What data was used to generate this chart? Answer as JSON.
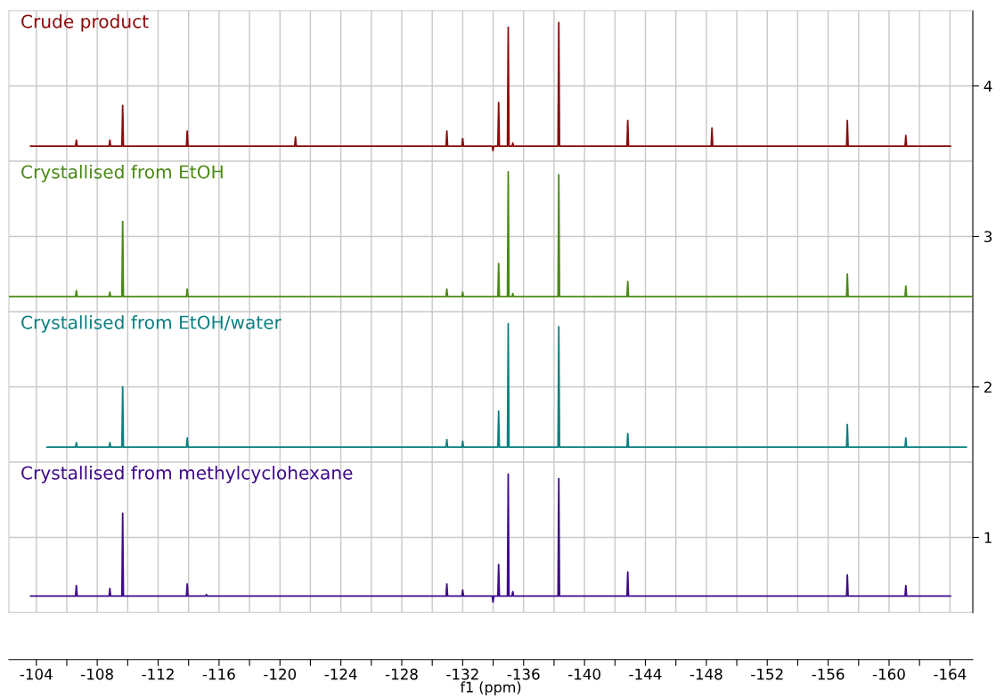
{
  "chart_data": {
    "type": "line",
    "xlabel": "f1 (ppm)",
    "xlim": [
      -102.2,
      -165.5
    ],
    "ylim": [
      0.5,
      4.5
    ],
    "xticks": [
      -104,
      {
        "value": -106,
        "label": null
      },
      -108,
      {
        "value": -110,
        "label": null
      },
      -112,
      {
        "value": -114,
        "label": null
      },
      -116,
      {
        "value": -118,
        "label": null
      },
      -120,
      {
        "value": -122,
        "label": null
      },
      -124,
      {
        "value": -126,
        "label": null
      },
      -128,
      {
        "value": -130,
        "label": null
      },
      -132,
      {
        "value": -134,
        "label": null
      },
      -136,
      {
        "value": -138,
        "label": null
      },
      -140,
      {
        "value": -142,
        "label": null
      },
      -144,
      {
        "value": -146,
        "label": null
      },
      -148,
      {
        "value": -150,
        "label": null
      },
      -152,
      {
        "value": -154,
        "label": null
      },
      -156,
      {
        "value": -158,
        "label": null
      },
      -160,
      {
        "value": -162,
        "label": null
      },
      -164
    ],
    "yticks": [
      1,
      2,
      3,
      4
    ],
    "grid": true,
    "marker": "none",
    "line_style": "solid",
    "ref_lines": [
      {
        "axis": "y",
        "value": 3.5,
        "color": "#c8c8c8"
      },
      {
        "axis": "y",
        "value": 2.5,
        "color": "#c8c8c8"
      },
      {
        "axis": "y",
        "value": 1.5,
        "color": "#c8c8c8"
      }
    ],
    "series": [
      {
        "name": "Crude product",
        "color": "#8b0a0a",
        "x": [
          -103.63,
          -106.58,
          -106.63,
          -106.68,
          -108.78,
          -108.83,
          -108.88,
          -109.62,
          -109.67,
          -109.72,
          -113.86,
          -113.91,
          -113.96,
          -120.97,
          -121.02,
          -121.07,
          -130.91,
          -130.96,
          -131.01,
          -131.95,
          -132.0,
          -132.05,
          -133.94,
          -133.99,
          -134.04,
          -134.31,
          -134.36,
          -134.41,
          -134.94,
          -134.99,
          -135.04,
          -135.24,
          -135.29,
          -135.34,
          -138.26,
          -138.31,
          -138.36,
          -142.79,
          -142.84,
          -142.89,
          -148.32,
          -148.37,
          -148.42,
          -157.21,
          -157.26,
          -157.31,
          -161.05,
          -161.1,
          -161.15,
          -164.03
        ],
        "values": [
          3.6,
          3.6,
          3.64,
          3.6,
          3.6,
          3.64,
          3.6,
          3.6,
          3.87,
          3.6,
          3.6,
          3.7,
          3.6,
          3.6,
          3.66,
          3.6,
          3.6,
          3.7,
          3.6,
          3.6,
          3.65,
          3.6,
          3.6,
          3.57,
          3.6,
          3.6,
          3.89,
          3.6,
          3.6,
          4.39,
          3.6,
          3.6,
          3.62,
          3.6,
          3.6,
          4.42,
          3.6,
          3.6,
          3.77,
          3.6,
          3.6,
          3.72,
          3.6,
          3.6,
          3.77,
          3.6,
          3.6,
          3.67,
          3.6,
          3.6
        ]
      },
      {
        "name": "Crystallised from EtOH",
        "color": "#4a8a14",
        "x": [
          -102.2,
          -106.58,
          -106.63,
          -106.68,
          -108.78,
          -108.83,
          -108.88,
          -109.62,
          -109.67,
          -109.72,
          -113.86,
          -113.91,
          -113.96,
          -130.91,
          -130.96,
          -131.01,
          -131.95,
          -132.0,
          -132.05,
          -134.31,
          -134.36,
          -134.41,
          -134.94,
          -134.99,
          -135.04,
          -135.24,
          -135.29,
          -135.34,
          -138.26,
          -138.31,
          -138.36,
          -142.79,
          -142.84,
          -142.89,
          -157.21,
          -157.26,
          -157.31,
          -161.05,
          -161.1,
          -161.15,
          -165.5
        ],
        "values": [
          2.6,
          2.6,
          2.64,
          2.6,
          2.6,
          2.63,
          2.6,
          2.6,
          3.1,
          2.6,
          2.6,
          2.65,
          2.6,
          2.6,
          2.65,
          2.6,
          2.6,
          2.63,
          2.6,
          2.6,
          2.82,
          2.6,
          2.6,
          3.43,
          2.6,
          2.6,
          2.62,
          2.6,
          2.6,
          3.41,
          2.6,
          2.6,
          2.7,
          2.6,
          2.6,
          2.75,
          2.6,
          2.6,
          2.67,
          2.6,
          2.6
        ]
      },
      {
        "name": "Crystallised from EtOH/water",
        "color": "#0a8080",
        "x": [
          -104.71,
          -106.58,
          -106.63,
          -106.68,
          -108.78,
          -108.83,
          -108.88,
          -109.62,
          -109.67,
          -109.72,
          -113.86,
          -113.91,
          -113.96,
          -130.91,
          -130.96,
          -131.01,
          -131.95,
          -132.0,
          -132.05,
          -134.31,
          -134.36,
          -134.41,
          -134.94,
          -134.99,
          -135.04,
          -138.26,
          -138.31,
          -138.36,
          -142.79,
          -142.84,
          -142.89,
          -157.21,
          -157.26,
          -157.31,
          -161.05,
          -161.1,
          -161.15,
          -165.07
        ],
        "values": [
          1.6,
          1.6,
          1.63,
          1.6,
          1.6,
          1.63,
          1.6,
          1.6,
          2.0,
          1.6,
          1.6,
          1.66,
          1.6,
          1.6,
          1.65,
          1.6,
          1.6,
          1.64,
          1.6,
          1.6,
          1.84,
          1.6,
          1.6,
          2.42,
          1.6,
          1.6,
          2.4,
          1.6,
          1.6,
          1.69,
          1.6,
          1.6,
          1.75,
          1.6,
          1.6,
          1.66,
          1.6,
          1.6
        ]
      },
      {
        "name": "Crystallised from methylcyclohexane",
        "color": "#3f0a8a",
        "x": [
          -103.63,
          -106.58,
          -106.63,
          -106.68,
          -108.78,
          -108.83,
          -108.88,
          -109.62,
          -109.67,
          -109.72,
          -113.86,
          -113.91,
          -113.96,
          -115.12,
          -115.17,
          -115.22,
          -130.91,
          -130.96,
          -131.01,
          -131.95,
          -132.0,
          -132.05,
          -133.94,
          -133.99,
          -134.04,
          -134.31,
          -134.36,
          -134.41,
          -134.94,
          -134.99,
          -135.04,
          -135.24,
          -135.29,
          -135.34,
          -138.26,
          -138.31,
          -138.36,
          -142.79,
          -142.84,
          -142.89,
          -157.21,
          -157.26,
          -157.31,
          -161.05,
          -161.1,
          -161.15,
          -164.03
        ],
        "values": [
          0.61,
          0.61,
          0.68,
          0.61,
          0.61,
          0.66,
          0.61,
          0.61,
          1.16,
          0.61,
          0.61,
          0.69,
          0.61,
          0.61,
          0.62,
          0.61,
          0.61,
          0.69,
          0.61,
          0.61,
          0.65,
          0.61,
          0.61,
          0.57,
          0.61,
          0.61,
          0.82,
          0.61,
          0.61,
          1.42,
          0.61,
          0.61,
          0.64,
          0.61,
          0.61,
          1.39,
          0.61,
          0.61,
          0.77,
          0.61,
          0.61,
          0.75,
          0.61,
          0.61,
          0.68,
          0.61,
          0.61
        ]
      }
    ]
  }
}
